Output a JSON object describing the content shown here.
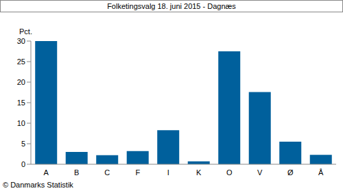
{
  "chart_data": {
    "type": "bar",
    "title": "Folketingsvalg 18. juni 2015 - Dagnæs",
    "ylabel": "Pct.",
    "annotations": [
      "© Danmarks Statistik"
    ],
    "categories": [
      "A",
      "B",
      "C",
      "F",
      "I",
      "K",
      "O",
      "V",
      "Ø",
      "Å"
    ],
    "values": [
      30.0,
      3.0,
      2.2,
      3.2,
      8.3,
      0.7,
      27.5,
      17.6,
      5.5,
      2.3
    ],
    "color": "#00609c",
    "ylim": [
      0,
      30
    ],
    "yticks": [
      0,
      5,
      10,
      15,
      20,
      25,
      30
    ],
    "grid": false
  }
}
